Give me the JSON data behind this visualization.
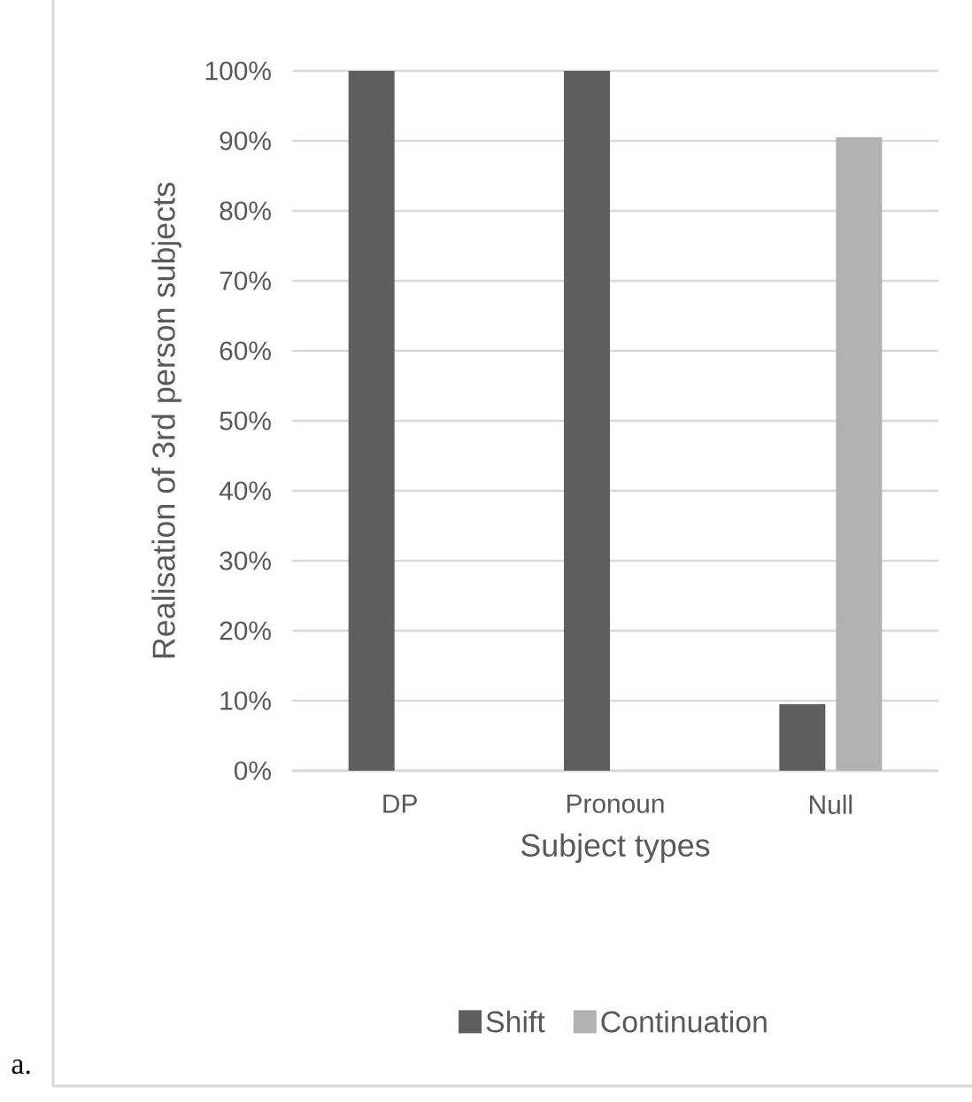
{
  "chart_data": {
    "type": "bar",
    "xlabel": "Subject types",
    "ylabel": "Realisation of 3rd person subjects",
    "categories": [
      "DP",
      "Pronoun",
      "Null"
    ],
    "series": [
      {
        "name": "Shift",
        "color": "#5f5f5f",
        "values": [
          100,
          100,
          9.5
        ]
      },
      {
        "name": "Continuation",
        "color": "#b2b2b2",
        "values": [
          0,
          0,
          90.5
        ]
      }
    ],
    "ylim": [
      0,
      100
    ],
    "yticks": [
      {
        "value": 0,
        "label": "0%"
      },
      {
        "value": 10,
        "label": "10%"
      },
      {
        "value": 20,
        "label": "20%"
      },
      {
        "value": 30,
        "label": "30%"
      },
      {
        "value": 40,
        "label": "40%"
      },
      {
        "value": 50,
        "label": "50%"
      },
      {
        "value": 60,
        "label": "60%"
      },
      {
        "value": 70,
        "label": "70%"
      },
      {
        "value": 80,
        "label": "80%"
      },
      {
        "value": 90,
        "label": "90%"
      },
      {
        "value": 100,
        "label": "100%"
      }
    ],
    "grid": "y",
    "legend": "bottom",
    "annotations": [
      "a."
    ]
  }
}
